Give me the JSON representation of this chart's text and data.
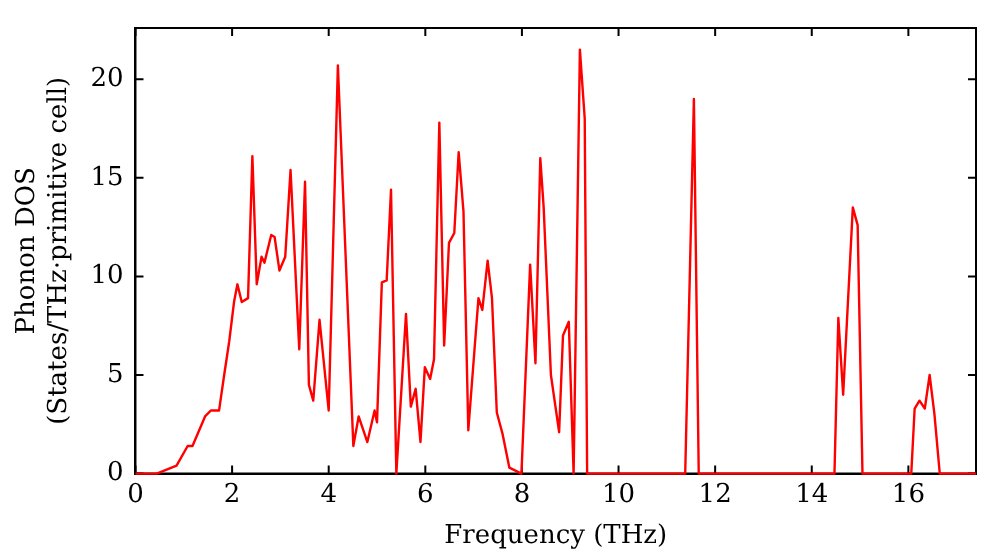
{
  "chart_data": {
    "type": "line",
    "xlabel": "Frequency (THz)",
    "ylabel": "Phonon DOS\n(States/THz·primitive cell)",
    "xlim": [
      0,
      17.4
    ],
    "ylim": [
      0,
      22.6
    ],
    "xticks": [
      0,
      2,
      4,
      6,
      8,
      10,
      12,
      14,
      16
    ],
    "yticks": [
      0,
      5,
      10,
      15,
      20
    ],
    "grid": false,
    "legend": false,
    "marker": "none",
    "line_style": "solid",
    "series": [
      {
        "color": "#ff0000",
        "x": [
          0,
          0.44,
          0.85,
          1.08,
          1.18,
          1.44,
          1.56,
          1.73,
          1.83,
          1.94,
          2.04,
          2.11,
          2.2,
          2.33,
          2.42,
          2.51,
          2.61,
          2.67,
          2.81,
          2.88,
          2.98,
          3.1,
          3.21,
          3.39,
          3.51,
          3.59,
          3.68,
          3.81,
          4.0,
          4.19,
          4.51,
          4.62,
          4.8,
          4.95,
          5.0,
          5.1,
          5.2,
          5.29,
          5.4,
          5.6,
          5.7,
          5.8,
          5.9,
          5.99,
          6.1,
          6.18,
          6.29,
          6.39,
          6.49,
          6.6,
          6.69,
          6.79,
          6.89,
          7.1,
          7.18,
          7.29,
          7.38,
          7.48,
          7.6,
          7.74,
          7.99,
          8.17,
          8.28,
          8.38,
          8.45,
          8.6,
          8.77,
          8.85,
          8.97,
          9.07,
          9.2,
          9.3,
          9.35,
          11.38,
          11.56,
          11.66,
          14.47,
          14.55,
          14.65,
          14.85,
          14.95,
          15.05,
          16.06,
          16.13,
          16.23,
          16.34,
          16.44,
          16.54,
          16.65,
          17.4
        ],
        "values": [
          0,
          0,
          0.4,
          1.4,
          1.4,
          2.9,
          3.2,
          3.2,
          4.9,
          6.7,
          8.7,
          9.6,
          8.7,
          8.9,
          16.1,
          9.6,
          11,
          10.7,
          12.1,
          12,
          10.3,
          11,
          15.4,
          6.3,
          14.8,
          4.5,
          3.7,
          7.8,
          3.2,
          20.7,
          1.4,
          2.9,
          1.6,
          3.2,
          2.6,
          9.7,
          9.8,
          14.4,
          0,
          8.1,
          3.4,
          4.3,
          1.6,
          5.4,
          4.8,
          5.8,
          17.8,
          6.5,
          11.7,
          12.2,
          16.3,
          13.3,
          2.2,
          8.9,
          8.3,
          10.8,
          8.9,
          3.1,
          2,
          0.3,
          0,
          10.6,
          5.6,
          16,
          13.5,
          5,
          2.1,
          7,
          7.7,
          0,
          21.5,
          18,
          0,
          0,
          19,
          0,
          0,
          7.9,
          4,
          13.5,
          12.6,
          0,
          0,
          3.3,
          3.7,
          3.3,
          5,
          3,
          0,
          0
        ]
      }
    ]
  }
}
